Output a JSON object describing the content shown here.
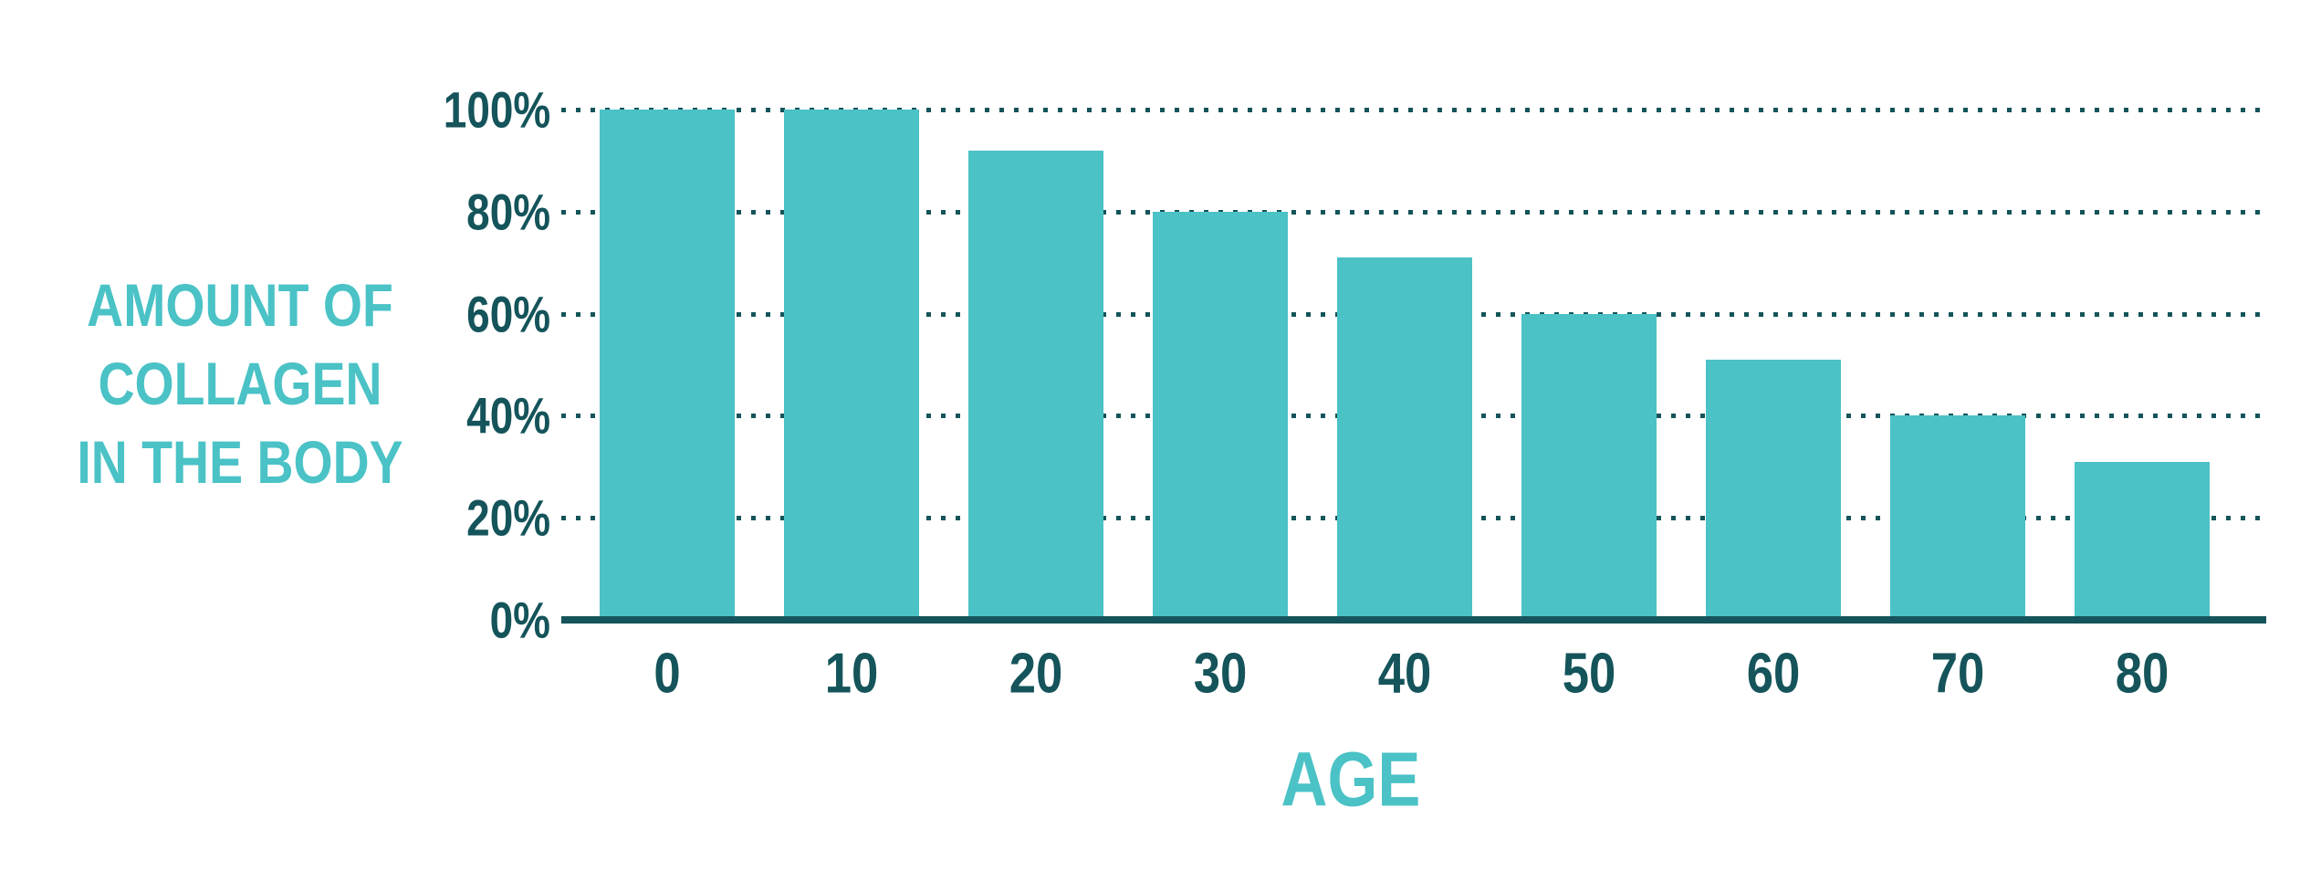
{
  "colors": {
    "bar_teal": "#4AC2C6",
    "accent_teal": "#4AC2C6",
    "dark_teal": "#14545A",
    "background": "#FFFFFF"
  },
  "chart_data": {
    "type": "bar",
    "title": "AMOUNT OF COLLAGEN IN THE BODY",
    "title_lines": [
      "AMOUNT OF",
      "COLLAGEN",
      "IN THE BODY"
    ],
    "xlabel": "AGE",
    "ylabel": "",
    "categories": [
      "0",
      "10",
      "20",
      "30",
      "40",
      "50",
      "60",
      "70",
      "80"
    ],
    "values": [
      100,
      100,
      92,
      80,
      71,
      60,
      51,
      40,
      31
    ],
    "y_ticks": [
      "100%",
      "80%",
      "60%",
      "40%",
      "20%",
      "0%"
    ],
    "ylim": [
      0,
      100
    ],
    "grid": "horizontal-dotted",
    "legend": "none",
    "bar_color": "#4AC2C6"
  }
}
